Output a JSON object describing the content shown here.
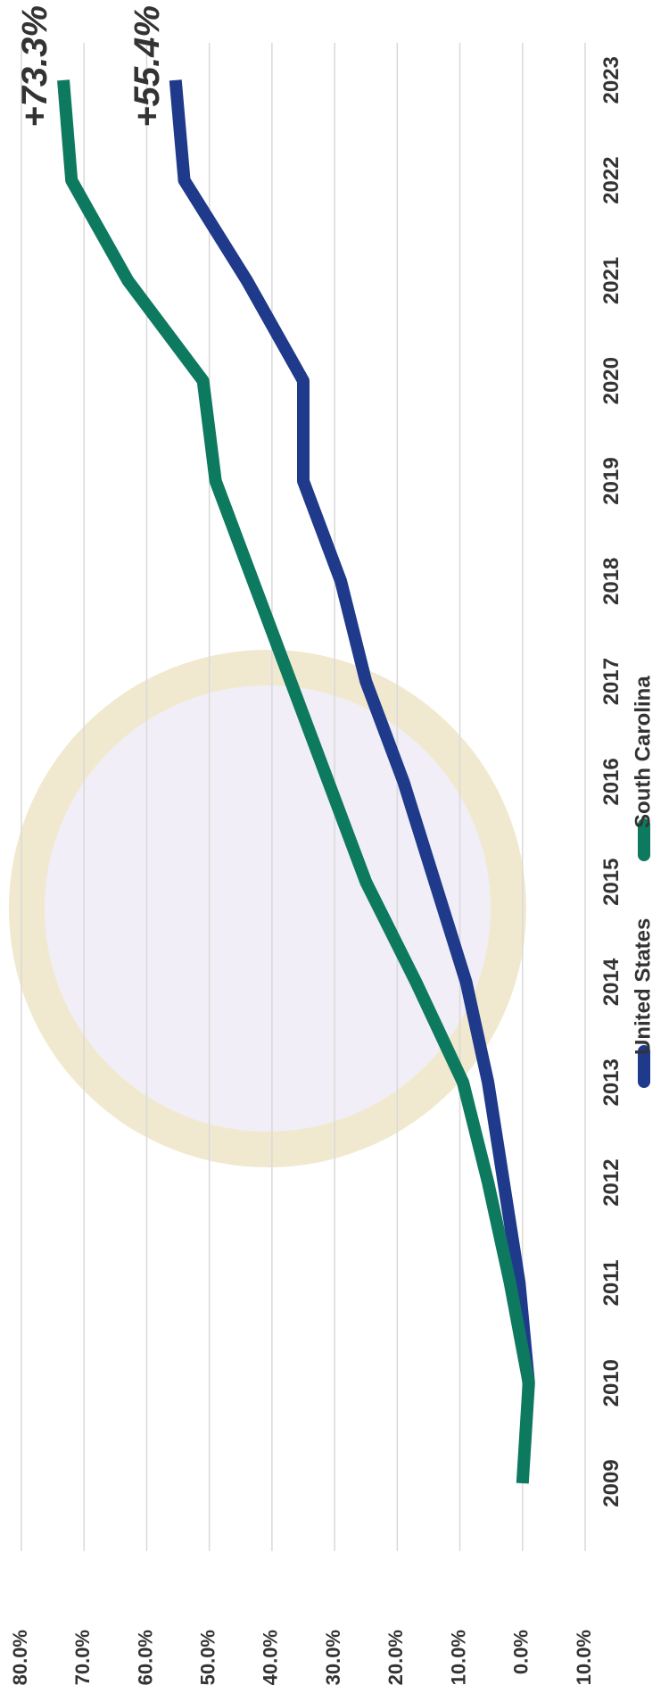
{
  "chart_data": {
    "type": "line",
    "categories": [
      "2009",
      "2010",
      "2011",
      "2012",
      "2013",
      "2014",
      "2015",
      "2016",
      "2017",
      "2018",
      "2019",
      "2020",
      "2021",
      "2022",
      "2023"
    ],
    "series": [
      {
        "name": "United States",
        "color": "#1f3a8a",
        "values": [
          null,
          -1.0,
          0.5,
          3.0,
          5.5,
          9.0,
          14.0,
          19.0,
          25.0,
          29.0,
          35.0,
          35.0,
          44.0,
          54.0,
          55.4
        ]
      },
      {
        "name": "South Carolina",
        "color": "#0d7a5f",
        "values": [
          0.0,
          -1.0,
          2.0,
          5.5,
          9.5,
          17.0,
          25.0,
          31.0,
          37.0,
          43.0,
          49.0,
          51.0,
          63.0,
          72.0,
          73.3
        ]
      }
    ],
    "annotations": [
      "+73.3%",
      "+55.4%"
    ],
    "ylim": [
      -10,
      80
    ],
    "yticks": [
      {
        "value": -10,
        "label": "-10.0%"
      },
      {
        "value": 0,
        "label": "0.0%"
      },
      {
        "value": 10,
        "label": "10.0%"
      },
      {
        "value": 20,
        "label": "20.0%"
      },
      {
        "value": 30,
        "label": "30.0%"
      },
      {
        "value": 40,
        "label": "40.0%"
      },
      {
        "value": 50,
        "label": "50.0%"
      },
      {
        "value": 60,
        "label": "60.0%"
      },
      {
        "value": 70,
        "label": "70.0%"
      },
      {
        "value": 80,
        "label": "80.0%"
      }
    ],
    "grid": true
  }
}
